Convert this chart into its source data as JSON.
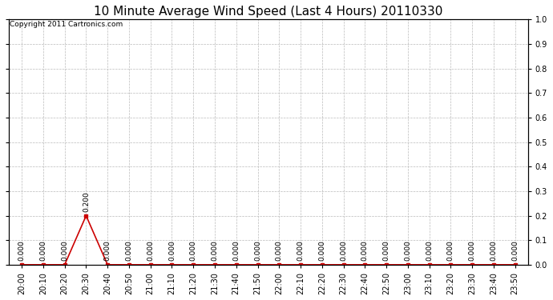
{
  "title": "10 Minute Average Wind Speed (Last 4 Hours) 20110330",
  "copyright": "Copyright 2011 Cartronics.com",
  "x_labels": [
    "20:00",
    "20:10",
    "20:20",
    "20:30",
    "20:40",
    "20:50",
    "21:00",
    "21:10",
    "21:20",
    "21:30",
    "21:40",
    "21:50",
    "22:00",
    "22:10",
    "22:20",
    "22:30",
    "22:40",
    "22:50",
    "23:00",
    "23:10",
    "23:20",
    "23:30",
    "23:40",
    "23:50"
  ],
  "values": [
    0.0,
    0.0,
    0.0,
    0.2,
    0.0,
    0.0,
    0.0,
    0.0,
    0.0,
    0.0,
    0.0,
    0.0,
    0.0,
    0.0,
    0.0,
    0.0,
    0.0,
    0.0,
    0.0,
    0.0,
    0.0,
    0.0,
    0.0,
    0.0
  ],
  "ylim": [
    0.0,
    1.0
  ],
  "yticks": [
    0.0,
    0.1,
    0.2,
    0.3,
    0.4,
    0.5,
    0.6,
    0.7,
    0.8,
    0.9,
    1.0
  ],
  "line_color": "#cc0000",
  "marker_color": "#cc0000",
  "bg_color": "#ffffff",
  "plot_bg_color": "#ffffff",
  "grid_color": "#bbbbbb",
  "title_fontsize": 11,
  "annotation_fontsize": 6.5,
  "tick_fontsize": 7,
  "copyright_fontsize": 6.5,
  "figwidth": 6.9,
  "figheight": 3.75,
  "dpi": 100
}
